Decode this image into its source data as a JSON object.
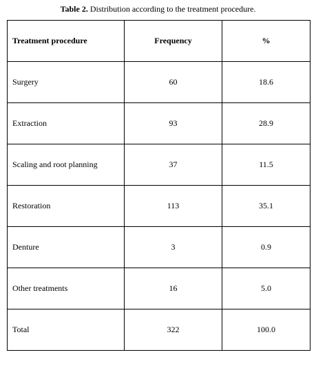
{
  "caption": {
    "label": "Table 2.",
    "text": "Distribution according to the treatment procedure."
  },
  "table": {
    "headers": [
      "Treatment procedure",
      "Frequency",
      "%"
    ],
    "rows": [
      [
        "Surgery",
        "60",
        "18.6"
      ],
      [
        "Extraction",
        "93",
        "28.9"
      ],
      [
        "Scaling and root planning",
        "37",
        "11.5"
      ],
      [
        "Restoration",
        "113",
        "35.1"
      ],
      [
        "Denture",
        "3",
        "0.9"
      ],
      [
        "Other treatments",
        "16",
        "5.0"
      ],
      [
        "Total",
        "322",
        "100.0"
      ]
    ]
  }
}
